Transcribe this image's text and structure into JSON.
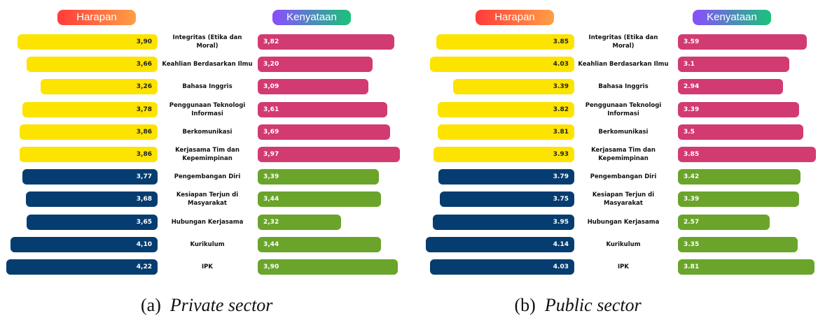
{
  "chart_data": [
    {
      "type": "bar",
      "caption_label": "(a)",
      "caption": "Private sector",
      "xlim": [
        0,
        4.3
      ],
      "categories": [
        "Integritas (Etika dan Moral)",
        "Keahlian Berdasarkan Ilmu",
        "Bahasa Inggris",
        "Penggunaan Teknologi Informasi",
        "Berkomunikasi",
        "Kerjasama Tim dan Kepemimpinan",
        "Pengembangan Diri",
        "Kesiapan Terjun di Masyarakat",
        "Hubungan Kerjasama",
        "Kurikulum",
        "IPK"
      ],
      "series": [
        {
          "name": "Harapan",
          "header_colors": [
            "#ff3b3b",
            "#ff9f45"
          ],
          "colors": [
            "#fde300",
            "#fde300",
            "#fde300",
            "#fde300",
            "#fde300",
            "#fde300",
            "#063d70",
            "#063d70",
            "#063d70",
            "#063d70",
            "#063d70"
          ],
          "values": [
            3.9,
            3.66,
            3.26,
            3.78,
            3.86,
            3.86,
            3.77,
            3.68,
            3.65,
            4.1,
            4.22
          ],
          "value_labels": [
            "3,90",
            "3,66",
            "3,26",
            "3,78",
            "3,86",
            "3,86",
            "3,77",
            "3,68",
            "3,65",
            "4,10",
            "4,22"
          ]
        },
        {
          "name": "Kenyataan",
          "header_colors": [
            "#8a4dff",
            "#19c37a"
          ],
          "colors": [
            "#d23a72",
            "#d23a72",
            "#d23a72",
            "#d23a72",
            "#d23a72",
            "#d23a72",
            "#6aa42b",
            "#6aa42b",
            "#6aa42b",
            "#6aa42b",
            "#6aa42b"
          ],
          "values": [
            3.82,
            3.2,
            3.09,
            3.61,
            3.69,
            3.97,
            3.39,
            3.44,
            2.32,
            3.44,
            3.9
          ],
          "value_labels": [
            "3,82",
            "3,20",
            "3,09",
            "3,61",
            "3,69",
            "3,97",
            "3,39",
            "3,44",
            "2,32",
            "3,44",
            "3,90"
          ]
        }
      ]
    },
    {
      "type": "bar",
      "caption_label": "(b)",
      "caption": "Public sector",
      "xlim": [
        0,
        4.3
      ],
      "categories": [
        "Integritas (Etika dan Moral)",
        "Keahlian Berdasarkan Ilmu",
        "Bahasa Inggris",
        "Penggunaan Teknologi Informasi",
        "Berkomunikasi",
        "Kerjasama Tim dan Kepemimpinan",
        "Pengembangan Diri",
        "Kesiapan Terjun di Masyarakat",
        "Hubungan Kerjasama",
        "Kurikulum",
        "IPK"
      ],
      "series": [
        {
          "name": "Harapan",
          "header_colors": [
            "#ff3b3b",
            "#ff9f45"
          ],
          "colors": [
            "#fde300",
            "#fde300",
            "#fde300",
            "#fde300",
            "#fde300",
            "#fde300",
            "#063d70",
            "#063d70",
            "#063d70",
            "#063d70",
            "#063d70"
          ],
          "values": [
            3.85,
            4.03,
            3.39,
            3.82,
            3.81,
            3.93,
            3.79,
            3.75,
            3.95,
            4.14,
            4.03
          ]
        },
        {
          "name": "Kenyataan",
          "header_colors": [
            "#8a4dff",
            "#19c37a"
          ],
          "colors": [
            "#d23a72",
            "#d23a72",
            "#d23a72",
            "#d23a72",
            "#d23a72",
            "#d23a72",
            "#6aa42b",
            "#6aa42b",
            "#6aa42b",
            "#6aa42b",
            "#6aa42b"
          ],
          "values": [
            3.59,
            3.1,
            2.94,
            3.39,
            3.5,
            3.85,
            3.42,
            3.39,
            2.57,
            3.35,
            3.81
          ]
        }
      ]
    }
  ]
}
